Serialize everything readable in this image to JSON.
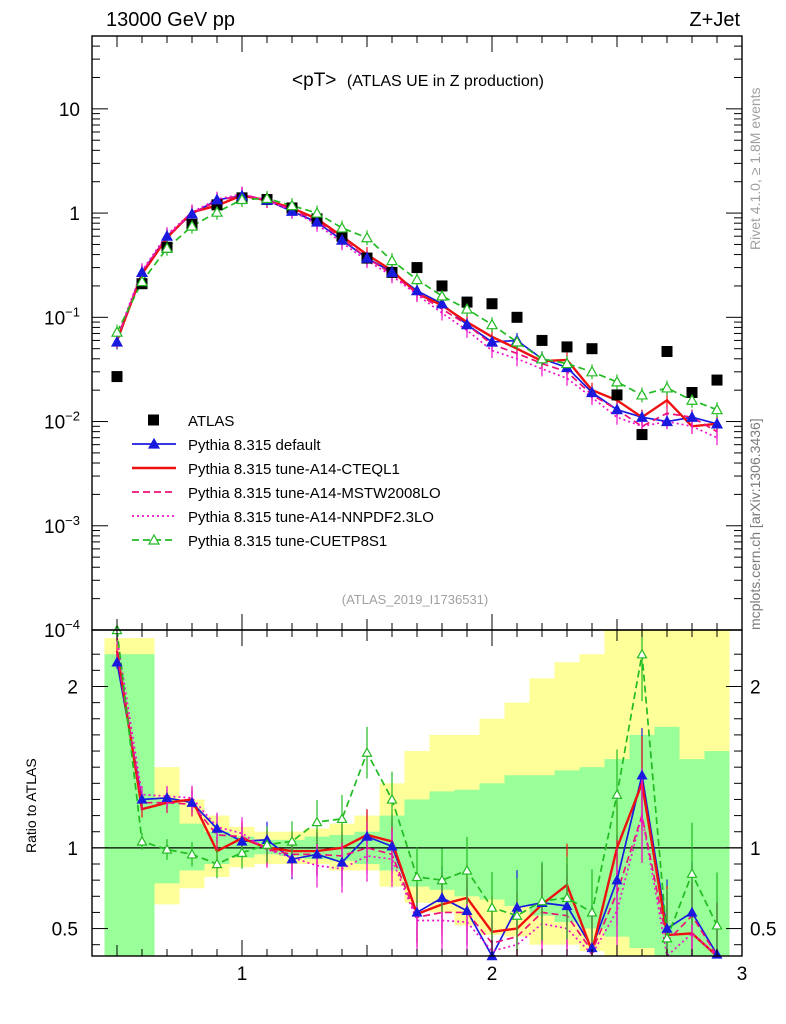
{
  "header": {
    "left": "13000 GeV pp",
    "right": "Z+Jet",
    "side_top": "Rivet 4.1.0, ≥ 1.8M events",
    "side_bottom": "mcplots.cern.ch [arXiv:1306.3436]"
  },
  "chart_data": [
    {
      "type": "line",
      "title": "<pT> (ATLAS UE in Z production)",
      "title_main": "<pT>",
      "title_sub": "(ATLAS UE in Z production)",
      "analysis_tag": "(ATLAS_2019_I1736531)",
      "yscale": "log",
      "ylim": [
        0.0001,
        50
      ],
      "xlim": [
        0.4,
        3.0
      ],
      "y_ticks": [
        {
          "v": 10,
          "label": "10",
          "sup": ""
        },
        {
          "v": 1,
          "label": "1",
          "sup": ""
        },
        {
          "v": 0.1,
          "label": "10",
          "sup": "−1"
        },
        {
          "v": 0.01,
          "label": "10",
          "sup": "−2"
        },
        {
          "v": 0.001,
          "label": "10",
          "sup": "−3"
        },
        {
          "v": 0.0001,
          "label": "10",
          "sup": "−4"
        }
      ],
      "x": [
        0.5,
        0.6,
        0.7,
        0.8,
        0.9,
        1.0,
        1.1,
        1.2,
        1.3,
        1.4,
        1.5,
        1.6,
        1.7,
        1.8,
        1.9,
        2.0,
        2.1,
        2.2,
        2.3,
        2.4,
        2.5,
        2.6,
        2.7,
        2.8,
        2.9
      ],
      "legend_position": "lower-left",
      "series": [
        {
          "name": "ATLAS",
          "color": "#000000",
          "style": "marker-square",
          "values": [
            0.027,
            0.21,
            0.47,
            0.78,
            1.2,
            1.4,
            1.35,
            1.12,
            0.88,
            0.6,
            0.37,
            0.27,
            0.3,
            0.2,
            0.14,
            0.135,
            0.1,
            0.06,
            0.052,
            0.05,
            0.018,
            0.0075,
            0.047,
            0.019,
            0.025
          ]
        },
        {
          "name": "Pythia 8.315 default",
          "color": "#1a1adf",
          "style": "solid-triangle",
          "values": [
            0.058,
            0.27,
            0.6,
            0.98,
            1.34,
            1.46,
            1.33,
            1.04,
            0.82,
            0.55,
            0.37,
            0.27,
            0.18,
            0.135,
            0.085,
            0.058,
            0.06,
            0.04,
            0.033,
            0.019,
            0.013,
            0.011,
            0.01,
            0.011,
            0.0095
          ]
        },
        {
          "name": "Pythia 8.315 tune-A14-CTEQL1",
          "color": "#ee1111",
          "style": "solid",
          "values": [
            0.06,
            0.26,
            0.58,
            1.02,
            1.18,
            1.48,
            1.32,
            1.12,
            0.88,
            0.6,
            0.4,
            0.28,
            0.17,
            0.13,
            0.09,
            0.065,
            0.05,
            0.038,
            0.039,
            0.02,
            0.016,
            0.011,
            0.016,
            0.009,
            0.0095
          ]
        },
        {
          "name": "Pythia 8.315 tune-A14-MSTW2008LO",
          "color": "#ee1177",
          "style": "dashed",
          "values": [
            0.062,
            0.27,
            0.6,
            0.99,
            1.3,
            1.5,
            1.34,
            1.08,
            0.84,
            0.57,
            0.37,
            0.26,
            0.17,
            0.12,
            0.085,
            0.055,
            0.045,
            0.036,
            0.03,
            0.018,
            0.013,
            0.009,
            0.012,
            0.011,
            0.008
          ]
        },
        {
          "name": "Pythia 8.315 tune-A14-NNPDF2.3LO",
          "color": "#ee11cc",
          "style": "dotted",
          "values": [
            0.064,
            0.28,
            0.62,
            1.02,
            1.36,
            1.52,
            1.33,
            1.05,
            0.78,
            0.52,
            0.35,
            0.25,
            0.165,
            0.11,
            0.075,
            0.048,
            0.04,
            0.032,
            0.026,
            0.017,
            0.011,
            0.009,
            0.01,
            0.009,
            0.007
          ]
        },
        {
          "name": "Pythia 8.315 tune-CUETP8S1",
          "color": "#22bb22",
          "style": "dashed-open-triangle",
          "values": [
            0.072,
            0.22,
            0.46,
            0.75,
            1.02,
            1.35,
            1.38,
            1.18,
            1.0,
            0.72,
            0.58,
            0.35,
            0.23,
            0.16,
            0.12,
            0.085,
            0.058,
            0.04,
            0.036,
            0.03,
            0.024,
            0.018,
            0.021,
            0.016,
            0.013
          ]
        }
      ]
    },
    {
      "type": "line",
      "ylabel": "Ratio to ATLAS",
      "ylim": [
        0.33,
        2.35
      ],
      "xlim": [
        0.4,
        3.0
      ],
      "reference": 1.0,
      "x_ticks": [
        {
          "v": 1,
          "label": "1"
        },
        {
          "v": 2,
          "label": "2"
        },
        {
          "v": 3,
          "label": "3"
        }
      ],
      "y_ticks": [
        {
          "v": 2,
          "label": "2"
        },
        {
          "v": 1,
          "label": "1"
        },
        {
          "v": 0.5,
          "label": "0.5"
        }
      ],
      "bands": {
        "x_edges": [
          0.45,
          0.55,
          0.65,
          0.75,
          0.85,
          0.95,
          1.05,
          1.15,
          1.25,
          1.35,
          1.45,
          1.55,
          1.65,
          1.75,
          1.85,
          1.95,
          2.05,
          2.15,
          2.25,
          2.35,
          2.45,
          2.55,
          2.65,
          2.75,
          2.85,
          2.95
        ],
        "yellow_lo": [
          0.33,
          0.33,
          0.65,
          0.75,
          0.82,
          0.88,
          0.9,
          0.9,
          0.9,
          0.86,
          0.86,
          0.76,
          0.66,
          0.6,
          0.52,
          0.46,
          0.45,
          0.4,
          0.4,
          0.36,
          0.33,
          0.33,
          0.33,
          0.33,
          0.33
        ],
        "yellow_hi": [
          2.3,
          2.3,
          1.5,
          1.3,
          1.2,
          1.13,
          1.1,
          1.1,
          1.12,
          1.15,
          1.2,
          1.4,
          1.6,
          1.7,
          1.7,
          1.8,
          1.9,
          2.05,
          2.15,
          2.2,
          2.35,
          2.35,
          2.35,
          2.35,
          2.35
        ],
        "green_lo": [
          0.33,
          0.33,
          0.78,
          0.86,
          0.9,
          0.94,
          0.96,
          0.95,
          0.93,
          0.92,
          0.9,
          0.86,
          0.76,
          0.74,
          0.7,
          0.68,
          0.64,
          0.58,
          0.54,
          0.5,
          0.45,
          0.38,
          0.33,
          0.33,
          0.33
        ],
        "green_hi": [
          2.2,
          2.2,
          1.3,
          1.15,
          1.1,
          1.07,
          1.05,
          1.05,
          1.07,
          1.08,
          1.1,
          1.2,
          1.3,
          1.35,
          1.36,
          1.4,
          1.45,
          1.45,
          1.48,
          1.5,
          1.55,
          1.7,
          1.75,
          1.55,
          1.6
        ]
      },
      "series": [
        {
          "name": "Pythia 8.315 default",
          "color": "#1a1adf",
          "style": "solid-triangle",
          "values": [
            2.15,
            1.3,
            1.31,
            1.28,
            1.12,
            1.04,
            1.05,
            0.93,
            0.96,
            0.91,
            1.07,
            1.01,
            0.6,
            0.69,
            0.61,
            0.33,
            0.63,
            0.66,
            0.64,
            0.38,
            0.8,
            1.45,
            0.5,
            0.6,
            0.34
          ]
        },
        {
          "name": "Pythia 8.315 tune-A14-CTEQL1",
          "color": "#ee1111",
          "style": "solid",
          "values": [
            2.22,
            1.24,
            1.28,
            1.3,
            0.98,
            1.06,
            1.0,
            0.98,
            0.98,
            1.0,
            1.08,
            1.04,
            0.59,
            0.65,
            0.69,
            0.48,
            0.5,
            0.65,
            0.77,
            0.36,
            1.0,
            1.4,
            0.46,
            0.47,
            0.33
          ]
        },
        {
          "name": "Pythia 8.315 tune-A14-MSTW2008LO",
          "color": "#ee1177",
          "style": "dashed",
          "values": [
            2.2,
            1.28,
            1.28,
            1.27,
            1.08,
            1.07,
            0.99,
            0.96,
            0.96,
            0.95,
            1.0,
            0.96,
            0.57,
            0.6,
            0.6,
            0.41,
            0.45,
            0.6,
            0.58,
            0.36,
            0.72,
            1.2,
            0.42,
            0.58,
            0.33
          ]
        },
        {
          "name": "Pythia 8.315 tune-A14-NNPDF2.3LO",
          "color": "#ee11cc",
          "style": "dotted",
          "values": [
            2.3,
            1.33,
            1.32,
            1.31,
            1.13,
            1.09,
            0.99,
            0.94,
            0.89,
            0.87,
            0.95,
            0.93,
            0.55,
            0.55,
            0.54,
            0.36,
            0.4,
            0.53,
            0.5,
            0.34,
            0.61,
            1.2,
            0.33,
            0.47,
            0.33
          ]
        },
        {
          "name": "Pythia 8.315 tune-CUETP8S1",
          "color": "#22bb22",
          "style": "dashed-open-triangle",
          "values": [
            2.4,
            1.04,
            0.99,
            0.96,
            0.9,
            0.97,
            1.02,
            1.04,
            1.16,
            1.18,
            1.59,
            1.3,
            0.82,
            0.8,
            0.86,
            0.63,
            0.58,
            0.67,
            0.69,
            0.6,
            1.33,
            2.2,
            0.44,
            0.84,
            0.52
          ]
        }
      ]
    }
  ]
}
